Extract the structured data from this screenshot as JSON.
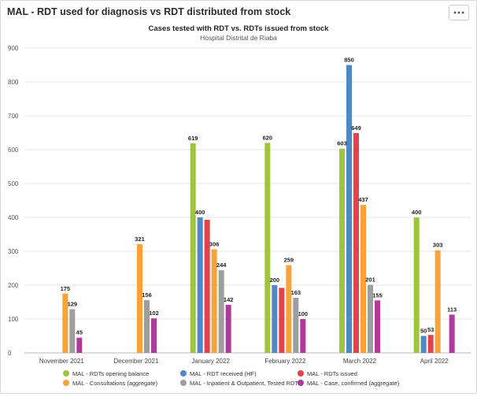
{
  "panel": {
    "title": "MAL - RDT used for diagnosis vs RDT distributed from stock",
    "menu_icon": "more-horizontal-icon"
  },
  "chart_data": {
    "type": "bar",
    "title": "Cases tested with RDT vs. RDTs issued from stock",
    "subtitle": "Hospital Distrital de Riaba",
    "xlabel": "",
    "ylabel": "",
    "ylim": [
      0,
      900
    ],
    "yticks": [
      0,
      100,
      200,
      300,
      400,
      500,
      600,
      700,
      800,
      900
    ],
    "grid": true,
    "legend_position": "bottom",
    "categories": [
      "November 2021",
      "December 2021",
      "January 2022",
      "February 2022",
      "March 2022",
      "April 2022"
    ],
    "series": [
      {
        "name": "MAL - RDTs opening balance",
        "color": "#a1c53a",
        "values": [
          null,
          null,
          619,
          620,
          603,
          400
        ]
      },
      {
        "name": "MAL - RDT received (HF)",
        "color": "#4e88c7",
        "values": [
          null,
          null,
          400,
          200,
          850,
          50
        ]
      },
      {
        "name": "MAL - RDTs issued",
        "color": "#e0434b",
        "values": [
          null,
          null,
          393,
          192,
          649,
          53
        ]
      },
      {
        "name": "MAL - Consultations (aggregate)",
        "color": "#f9a13a",
        "values": [
          175,
          321,
          306,
          259,
          437,
          303
        ]
      },
      {
        "name": "MAL - Inpatient & Outpatient, Tested RDT",
        "color": "#9e9e9e",
        "values": [
          129,
          156,
          244,
          163,
          201,
          null
        ]
      },
      {
        "name": "MAL - Case, confirmed (aggregate)",
        "color": "#b1399e",
        "values": [
          45,
          102,
          142,
          100,
          155,
          113
        ]
      }
    ],
    "data_labels": [
      [
        null,
        null,
        "619",
        "620",
        "603",
        "400"
      ],
      [
        null,
        null,
        "400",
        "200",
        "850",
        "50"
      ],
      [
        null,
        null,
        null,
        null,
        "649",
        "53"
      ],
      [
        "175",
        "321",
        "306",
        "259",
        "437",
        "303"
      ],
      [
        "129",
        "156",
        "244",
        "163",
        "201",
        null
      ],
      [
        "45",
        "102",
        "142",
        "100",
        "155",
        "113"
      ]
    ]
  }
}
